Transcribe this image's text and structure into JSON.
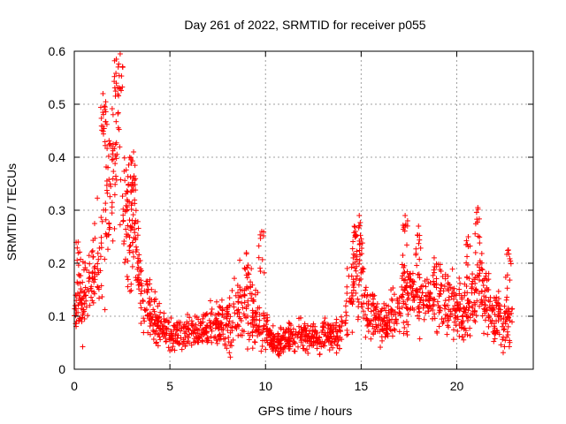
{
  "chart_data": {
    "type": "scatter",
    "title": "Day 261 of 2022, SRMTID for receiver p055",
    "xlabel": "GPS time / hours",
    "ylabel": "SRMTID / TECUs",
    "xlim": [
      0,
      24
    ],
    "ylim": [
      0,
      0.6
    ],
    "xticks": [
      0,
      5,
      10,
      15,
      20
    ],
    "xtick_labels": [
      "0",
      "5",
      "10",
      "15",
      "20"
    ],
    "yticks": [
      0,
      0.1,
      0.2,
      0.3,
      0.4,
      0.5,
      0.6
    ],
    "ytick_labels": [
      "0",
      "0.1",
      "0.2",
      "0.3",
      "0.4",
      "0.5",
      "0.6"
    ],
    "grid": true,
    "marker": "plus",
    "color": "#ff0000",
    "series": [
      {
        "name": "SRMTID",
        "profile_hours": [
          0,
          0.5,
          1.0,
          1.5,
          1.8,
          2.0,
          2.3,
          2.6,
          2.9,
          3.1,
          3.5,
          4.0,
          4.5,
          5.0,
          5.5,
          6.0,
          7.0,
          8.0,
          8.5,
          9.0,
          9.5,
          10.0,
          10.5,
          11.0,
          12.0,
          13.0,
          14.0,
          14.3,
          14.7,
          15.0,
          15.3,
          15.8,
          16.3,
          17.0,
          17.4,
          17.8,
          18.3,
          18.8,
          19.5,
          20.0,
          20.5,
          21.0,
          21.3,
          21.6,
          22.0,
          22.5,
          22.9
        ],
        "profile_center": [
          0.12,
          0.13,
          0.17,
          0.25,
          0.32,
          0.38,
          0.45,
          0.3,
          0.22,
          0.28,
          0.14,
          0.11,
          0.08,
          0.06,
          0.07,
          0.07,
          0.08,
          0.09,
          0.11,
          0.13,
          0.1,
          0.07,
          0.05,
          0.06,
          0.065,
          0.06,
          0.07,
          0.13,
          0.18,
          0.17,
          0.11,
          0.1,
          0.09,
          0.12,
          0.15,
          0.14,
          0.13,
          0.15,
          0.13,
          0.11,
          0.1,
          0.15,
          0.16,
          0.12,
          0.1,
          0.09,
          0.09
        ],
        "profile_spread": [
          0.05,
          0.06,
          0.07,
          0.1,
          0.12,
          0.14,
          0.12,
          0.1,
          0.1,
          0.1,
          0.05,
          0.04,
          0.03,
          0.025,
          0.025,
          0.025,
          0.03,
          0.04,
          0.06,
          0.07,
          0.05,
          0.03,
          0.02,
          0.025,
          0.025,
          0.025,
          0.03,
          0.06,
          0.07,
          0.07,
          0.04,
          0.035,
          0.035,
          0.05,
          0.07,
          0.06,
          0.05,
          0.06,
          0.05,
          0.04,
          0.04,
          0.07,
          0.07,
          0.05,
          0.04,
          0.05,
          0.04
        ],
        "peaks": [
          [
            2.2,
            0.585
          ],
          [
            2.4,
            0.595
          ],
          [
            1.5,
            0.52
          ],
          [
            1.6,
            0.49
          ],
          [
            3.1,
            0.41
          ],
          [
            2.9,
            0.4
          ],
          [
            14.9,
            0.29
          ],
          [
            14.7,
            0.26
          ],
          [
            17.3,
            0.29
          ],
          [
            18.0,
            0.27
          ],
          [
            21.1,
            0.305
          ],
          [
            20.6,
            0.25
          ],
          [
            9.8,
            0.26
          ],
          [
            9.0,
            0.22
          ],
          [
            0.2,
            0.24
          ],
          [
            22.7,
            0.225
          ]
        ],
        "count": 1800
      }
    ]
  }
}
